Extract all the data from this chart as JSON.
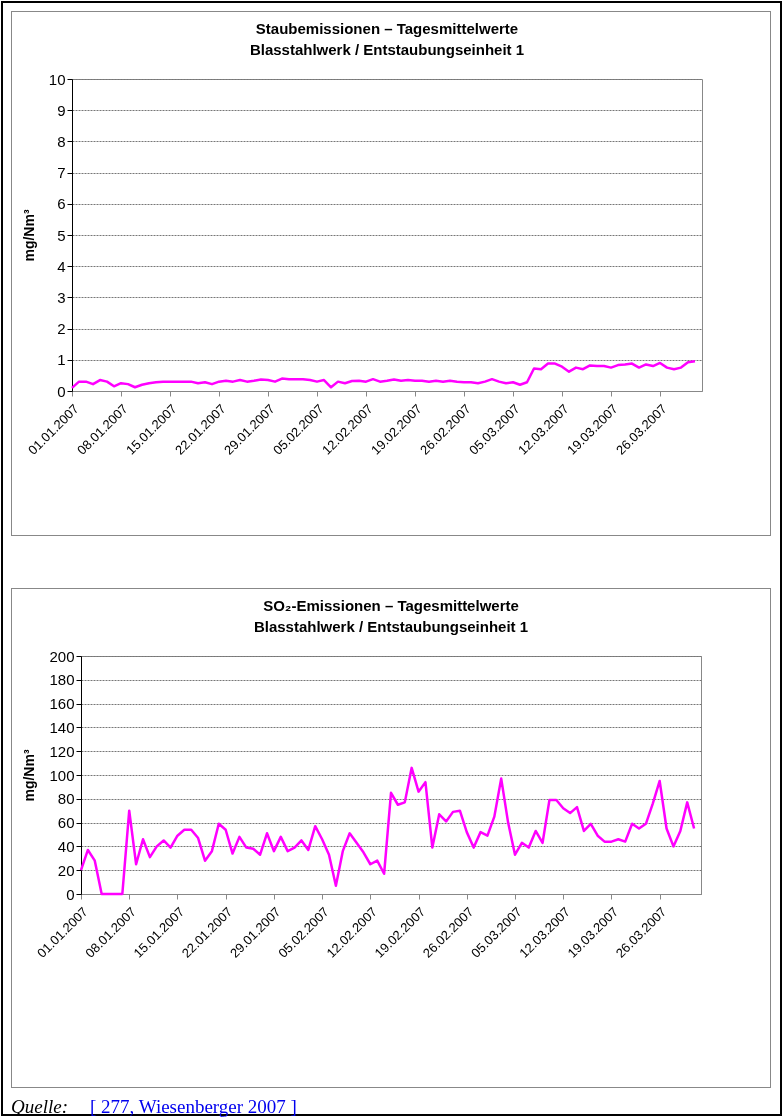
{
  "chart_data": [
    {
      "type": "line",
      "title": "Staubemissionen – Tagesmittelwerte",
      "subtitle": "Blasstahlwerk / Entstaubungseinheit 1",
      "ylabel": "mg/Nm³",
      "x": [
        "2007-01-01",
        "2007-01-02",
        "2007-01-03",
        "2007-01-04",
        "2007-01-05",
        "2007-01-06",
        "2007-01-07",
        "2007-01-08",
        "2007-01-09",
        "2007-01-10",
        "2007-01-11",
        "2007-01-12",
        "2007-01-13",
        "2007-01-14",
        "2007-01-15",
        "2007-01-16",
        "2007-01-17",
        "2007-01-18",
        "2007-01-19",
        "2007-01-20",
        "2007-01-21",
        "2007-01-22",
        "2007-01-23",
        "2007-01-24",
        "2007-01-25",
        "2007-01-26",
        "2007-01-27",
        "2007-01-28",
        "2007-01-29",
        "2007-01-30",
        "2007-01-31",
        "2007-02-01",
        "2007-02-02",
        "2007-02-03",
        "2007-02-04",
        "2007-02-05",
        "2007-02-06",
        "2007-02-07",
        "2007-02-08",
        "2007-02-09",
        "2007-02-10",
        "2007-02-11",
        "2007-02-12",
        "2007-02-13",
        "2007-02-14",
        "2007-02-15",
        "2007-02-16",
        "2007-02-17",
        "2007-02-18",
        "2007-02-19",
        "2007-02-20",
        "2007-02-21",
        "2007-02-22",
        "2007-02-23",
        "2007-02-24",
        "2007-02-25",
        "2007-02-26",
        "2007-02-27",
        "2007-02-28",
        "2007-03-01",
        "2007-03-02",
        "2007-03-03",
        "2007-03-04",
        "2007-03-05",
        "2007-03-06",
        "2007-03-07",
        "2007-03-08",
        "2007-03-09",
        "2007-03-10",
        "2007-03-11",
        "2007-03-12",
        "2007-03-13",
        "2007-03-14",
        "2007-03-15",
        "2007-03-16",
        "2007-03-17",
        "2007-03-18",
        "2007-03-19",
        "2007-03-20",
        "2007-03-21",
        "2007-03-22",
        "2007-03-23",
        "2007-03-24",
        "2007-03-25",
        "2007-03-26",
        "2007-03-27",
        "2007-03-28",
        "2007-03-29",
        "2007-03-30",
        "2007-03-31"
      ],
      "series": [
        {
          "color": "#ff00ff",
          "values": [
            0.1,
            0.3,
            0.3,
            0.22,
            0.35,
            0.3,
            0.15,
            0.25,
            0.22,
            0.12,
            0.2,
            0.25,
            0.28,
            0.3,
            0.3,
            0.3,
            0.3,
            0.3,
            0.25,
            0.28,
            0.22,
            0.3,
            0.33,
            0.3,
            0.35,
            0.3,
            0.33,
            0.37,
            0.35,
            0.3,
            0.4,
            0.38,
            0.38,
            0.38,
            0.35,
            0.3,
            0.35,
            0.12,
            0.3,
            0.25,
            0.32,
            0.33,
            0.3,
            0.38,
            0.3,
            0.33,
            0.37,
            0.33,
            0.35,
            0.33,
            0.33,
            0.3,
            0.33,
            0.3,
            0.33,
            0.3,
            0.28,
            0.28,
            0.25,
            0.3,
            0.38,
            0.3,
            0.25,
            0.28,
            0.2,
            0.28,
            0.72,
            0.7,
            0.88,
            0.88,
            0.78,
            0.62,
            0.75,
            0.7,
            0.82,
            0.8,
            0.8,
            0.75,
            0.83,
            0.85,
            0.88,
            0.75,
            0.85,
            0.8,
            0.9,
            0.75,
            0.7,
            0.75,
            0.92,
            0.95
          ]
        }
      ],
      "xlim": [
        "2007-01-01",
        "2007-04-01"
      ],
      "xticks": [
        {
          "value": "2007-01-01",
          "label": "01.01.2007"
        },
        {
          "value": "2007-01-08",
          "label": "08.01.2007"
        },
        {
          "value": "2007-01-15",
          "label": "15.01.2007"
        },
        {
          "value": "2007-01-22",
          "label": "22.01.2007"
        },
        {
          "value": "2007-01-29",
          "label": "29.01.2007"
        },
        {
          "value": "2007-02-05",
          "label": "05.02.2007"
        },
        {
          "value": "2007-02-12",
          "label": "12.02.2007"
        },
        {
          "value": "2007-02-19",
          "label": "19.02.2007"
        },
        {
          "value": "2007-02-26",
          "label": "26.02.2007"
        },
        {
          "value": "2007-03-05",
          "label": "05.03.2007"
        },
        {
          "value": "2007-03-12",
          "label": "12.03.2007"
        },
        {
          "value": "2007-03-19",
          "label": "19.03.2007"
        },
        {
          "value": "2007-03-26",
          "label": "26.03.2007"
        }
      ],
      "ylim": [
        0,
        10
      ],
      "yticks": [
        0,
        1,
        2,
        3,
        4,
        5,
        6,
        7,
        8,
        9,
        10
      ],
      "grid": "y"
    },
    {
      "type": "line",
      "title": "SO₂-Emissionen – Tagesmittelwerte",
      "subtitle": "Blasstahlwerk / Entstaubungseinheit 1",
      "ylabel": "mg/Nm³",
      "x": [
        "2007-01-01",
        "2007-01-02",
        "2007-01-03",
        "2007-01-04",
        "2007-01-05",
        "2007-01-06",
        "2007-01-07",
        "2007-01-08",
        "2007-01-09",
        "2007-01-10",
        "2007-01-11",
        "2007-01-12",
        "2007-01-13",
        "2007-01-14",
        "2007-01-15",
        "2007-01-16",
        "2007-01-17",
        "2007-01-18",
        "2007-01-19",
        "2007-01-20",
        "2007-01-21",
        "2007-01-22",
        "2007-01-23",
        "2007-01-24",
        "2007-01-25",
        "2007-01-26",
        "2007-01-27",
        "2007-01-28",
        "2007-01-29",
        "2007-01-30",
        "2007-01-31",
        "2007-02-01",
        "2007-02-02",
        "2007-02-03",
        "2007-02-04",
        "2007-02-05",
        "2007-02-06",
        "2007-02-07",
        "2007-02-08",
        "2007-02-09",
        "2007-02-10",
        "2007-02-11",
        "2007-02-12",
        "2007-02-13",
        "2007-02-14",
        "2007-02-15",
        "2007-02-16",
        "2007-02-17",
        "2007-02-18",
        "2007-02-19",
        "2007-02-20",
        "2007-02-21",
        "2007-02-22",
        "2007-02-23",
        "2007-02-24",
        "2007-02-25",
        "2007-02-26",
        "2007-02-27",
        "2007-02-28",
        "2007-03-01",
        "2007-03-02",
        "2007-03-03",
        "2007-03-04",
        "2007-03-05",
        "2007-03-06",
        "2007-03-07",
        "2007-03-08",
        "2007-03-09",
        "2007-03-10",
        "2007-03-11",
        "2007-03-12",
        "2007-03-13",
        "2007-03-14",
        "2007-03-15",
        "2007-03-16",
        "2007-03-17",
        "2007-03-18",
        "2007-03-19",
        "2007-03-20",
        "2007-03-21",
        "2007-03-22",
        "2007-03-23",
        "2007-03-24",
        "2007-03-25",
        "2007-03-26",
        "2007-03-27",
        "2007-03-28",
        "2007-03-29",
        "2007-03-30",
        "2007-03-31"
      ],
      "series": [
        {
          "color": "#ff00ff",
          "values": [
            20,
            37,
            28,
            0,
            0,
            0,
            0,
            70,
            25,
            46,
            31,
            40,
            45,
            39,
            49,
            54,
            54,
            47,
            28,
            36,
            59,
            54,
            34,
            48,
            39,
            38,
            33,
            51,
            36,
            48,
            36,
            39,
            45,
            37,
            57,
            46,
            33,
            7,
            36,
            51,
            43,
            35,
            25,
            28,
            17,
            85,
            75,
            77,
            106,
            86,
            94,
            39,
            67,
            61,
            69,
            70,
            52,
            39,
            52,
            49,
            65,
            97,
            60,
            33,
            43,
            39,
            53,
            43,
            79,
            79,
            72,
            68,
            73,
            53,
            59,
            49,
            44,
            44,
            46,
            44,
            59,
            55,
            59,
            76,
            95,
            55,
            40,
            53,
            77,
            55
          ]
        }
      ],
      "xlim": [
        "2007-01-01",
        "2007-04-01"
      ],
      "xticks": [
        {
          "value": "2007-01-01",
          "label": "01.01.2007"
        },
        {
          "value": "2007-01-08",
          "label": "08.01.2007"
        },
        {
          "value": "2007-01-15",
          "label": "15.01.2007"
        },
        {
          "value": "2007-01-22",
          "label": "22.01.2007"
        },
        {
          "value": "2007-01-29",
          "label": "29.01.2007"
        },
        {
          "value": "2007-02-05",
          "label": "05.02.2007"
        },
        {
          "value": "2007-02-12",
          "label": "12.02.2007"
        },
        {
          "value": "2007-02-19",
          "label": "19.02.2007"
        },
        {
          "value": "2007-02-26",
          "label": "26.02.2007"
        },
        {
          "value": "2007-03-05",
          "label": "05.03.2007"
        },
        {
          "value": "2007-03-12",
          "label": "12.03.2007"
        },
        {
          "value": "2007-03-19",
          "label": "19.03.2007"
        },
        {
          "value": "2007-03-26",
          "label": "26.03.2007"
        }
      ],
      "ylim": [
        0,
        200
      ],
      "yticks": [
        0,
        20,
        40,
        60,
        80,
        100,
        120,
        140,
        160,
        180,
        200
      ],
      "grid": "y",
      "annotations": [
        "Quelle:   [ 277, Wiesenberger 2007 ]"
      ]
    }
  ]
}
